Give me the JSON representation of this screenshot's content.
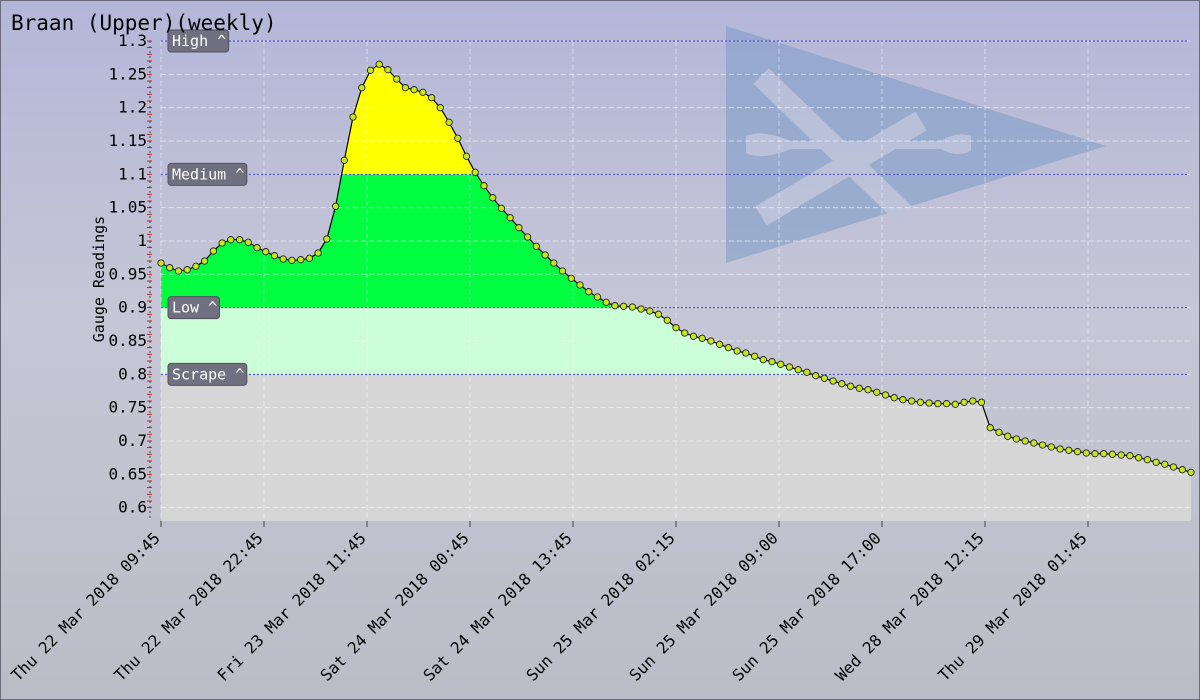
{
  "chart_data": {
    "type": "area",
    "title": "Braan (Upper)(weekly)",
    "ylabel": "Gauge Readings",
    "xlabel": "",
    "ylim": [
      0.58,
      1.3
    ],
    "yticks": [
      "0.6",
      "0.65",
      "0.7",
      "0.75",
      "0.8",
      "0.85",
      "0.9",
      "0.95",
      "1",
      "1.05",
      "1.1",
      "1.15",
      "1.2",
      "1.25",
      "1.3"
    ],
    "x_tick_labels": [
      "Thu 22 Mar 2018 09:45",
      "Thu 22 Mar 2018 22:45",
      "Fri 23 Mar 2018 11:45",
      "Sat 24 Mar 2018 00:45",
      "Sat 24 Mar 2018 13:45",
      "Sun 25 Mar 2018 02:15",
      "Sun 25 Mar 2018 09:00",
      "Sun 25 Mar 2018 17:00",
      "Wed 28 Mar 2018 12:15",
      "Thu 29 Mar 2018 01:45"
    ],
    "levels": [
      {
        "label": "High ^",
        "value": 1.3,
        "color": "#ffff00"
      },
      {
        "label": "Medium ^",
        "value": 1.1,
        "color": "#00ff40"
      },
      {
        "label": "Low ^",
        "value": 0.9,
        "color": "#ccffd8"
      },
      {
        "label": "Scrape ^",
        "value": 0.8,
        "color": "#d6d6d6"
      }
    ],
    "grid": true,
    "series": [
      {
        "line_color": "#000000",
        "marker_color": "#c8e620",
        "values": [
          0.967,
          0.96,
          0.955,
          0.957,
          0.962,
          0.97,
          0.985,
          0.997,
          1.002,
          1.002,
          0.998,
          0.99,
          0.984,
          0.978,
          0.973,
          0.971,
          0.972,
          0.974,
          0.982,
          1.003,
          1.052,
          1.121,
          1.186,
          1.23,
          1.256,
          1.265,
          1.257,
          1.243,
          1.23,
          1.227,
          1.223,
          1.215,
          1.2,
          1.178,
          1.154,
          1.127,
          1.103,
          1.083,
          1.065,
          1.049,
          1.035,
          1.02,
          1.006,
          0.992,
          0.979,
          0.967,
          0.955,
          0.944,
          0.934,
          0.924,
          0.916,
          0.908,
          0.903,
          0.902,
          0.901,
          0.898,
          0.895,
          0.89,
          0.881,
          0.87,
          0.862,
          0.857,
          0.854,
          0.85,
          0.845,
          0.84,
          0.835,
          0.832,
          0.827,
          0.822,
          0.819,
          0.815,
          0.811,
          0.807,
          0.803,
          0.798,
          0.794,
          0.79,
          0.786,
          0.782,
          0.779,
          0.777,
          0.773,
          0.769,
          0.765,
          0.762,
          0.76,
          0.758,
          0.757,
          0.756,
          0.756,
          0.755,
          0.758,
          0.76,
          0.758,
          0.72,
          0.713,
          0.707,
          0.703,
          0.7,
          0.697,
          0.694,
          0.691,
          0.688,
          0.686,
          0.684,
          0.682,
          0.681,
          0.681,
          0.68,
          0.679,
          0.678,
          0.675,
          0.672,
          0.668,
          0.665,
          0.661,
          0.657,
          0.653
        ]
      }
    ]
  }
}
